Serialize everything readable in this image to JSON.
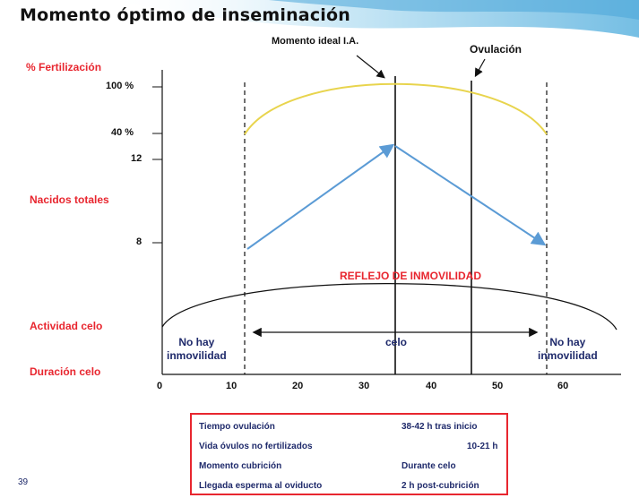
{
  "title": "Momento óptimo de inseminación",
  "labels": {
    "ideal_ia": "Momento ideal I.A.",
    "ovulacion": "Ovulación",
    "pct_fertilizacion": "% Fertilización",
    "nacidos_totales": "Nacidos totales",
    "actividad_celo": "Actividad celo",
    "duracion_celo": "Duración celo",
    "reflejo": "REFLEJO DE INMOVILIDAD",
    "no_hay_left": "No hay\ninmovilidad",
    "no_hay_right": "No hay\ninmovilidad",
    "celo": "celo"
  },
  "y_ticks": {
    "t100": "100 %",
    "t40": "40 %",
    "t12": "12",
    "t8": "8"
  },
  "x_ticks": [
    "0",
    "10",
    "20",
    "30",
    "40",
    "50",
    "60"
  ],
  "info_box": [
    {
      "label": "Tiempo ovulación",
      "value": "38-42  h tras inicio"
    },
    {
      "label": "Vida óvulos no fertilizados",
      "value": "10-21  h"
    },
    {
      "label": "Momento cubrición",
      "value": "Durante celo"
    },
    {
      "label": "Llegada esperma al oviducto",
      "value": "2 h post-cubrición"
    }
  ],
  "page_number": "39",
  "colors": {
    "title_bg": "#7fc4e6",
    "label_red": "#e8262f",
    "fertilization_curve": "#e8d44d",
    "nacidos_line": "#5b9bd5",
    "text_navy": "#1f2a6b"
  }
}
